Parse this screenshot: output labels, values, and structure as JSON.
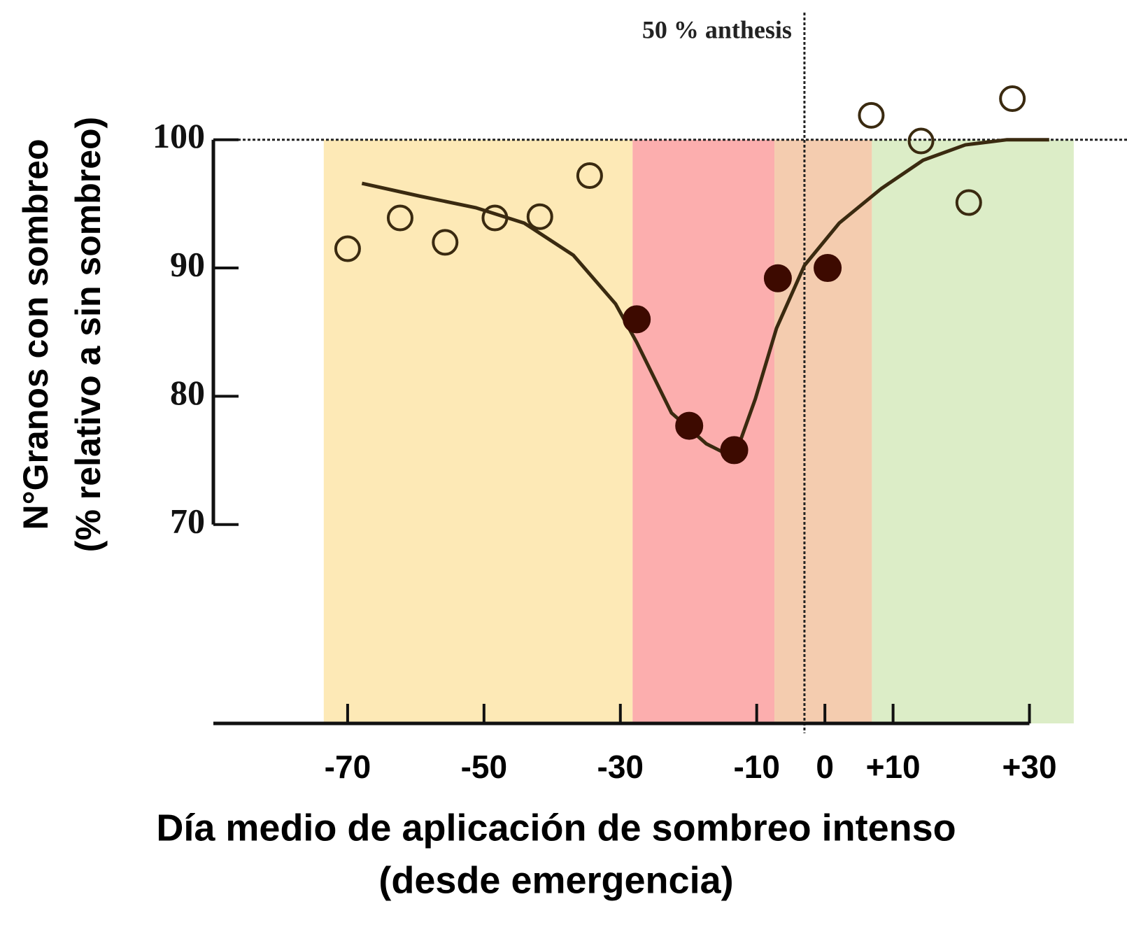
{
  "chart_data": {
    "type": "scatter",
    "annotation": "50 % anthesis",
    "anthesis_x": -3,
    "y_title": [
      "N°Granos con sombreo",
      "(% relativo a sin sombreo)"
    ],
    "x_title": [
      "Día medio de aplicación de sombreo intenso",
      "(desde emergencia)"
    ],
    "xlim": [
      -90,
      40
    ],
    "ylim": [
      54.5,
      108
    ],
    "xticks": [
      -70,
      -50,
      -30,
      -10,
      0,
      {
        "value": 10,
        "label": "+10"
      },
      {
        "value": 30,
        "label": "+30"
      }
    ],
    "yticks": [
      70,
      80,
      90,
      100
    ],
    "reference_y": 100,
    "bands": [
      {
        "from": -73.5,
        "to": -28.2,
        "color": "#fde9b6"
      },
      {
        "from": -28.2,
        "to": -7.4,
        "color": "#fcaeae"
      },
      {
        "from": -7.4,
        "to": 6.9,
        "color": "#f4ccaf"
      },
      {
        "from": 6.9,
        "to": 36.5,
        "color": "#dcedc7"
      }
    ],
    "series": [
      {
        "marker": "open",
        "color": "#3a2a10",
        "x": [
          -70,
          -62.3,
          -55.7,
          -48.4,
          -41.8,
          -34.5,
          6.8,
          14.1,
          21.1,
          27.5
        ],
        "values": [
          91.5,
          93.9,
          92.0,
          93.9,
          94.0,
          97.2,
          101.9,
          99.9,
          95.1,
          103.2
        ]
      },
      {
        "marker": "filled",
        "color": "#3d0a00",
        "x": [
          -27.6,
          -19.9,
          -13.3,
          -6.9,
          0.4
        ],
        "values": [
          86.0,
          77.7,
          75.8,
          89.2,
          90.0
        ]
      }
    ],
    "fit": {
      "color": "#3a2a10",
      "x": [
        -67.9,
        -59.4,
        -51.2,
        -44.1,
        -36.9,
        -30.7,
        -27.6,
        -22.5,
        -17.4,
        -13.3,
        -10.2,
        -7.1,
        -3.0,
        2.1,
        8.3,
        14.4,
        20.6,
        26.7,
        32.9
      ],
      "values": [
        96.6,
        95.6,
        94.7,
        93.5,
        91.0,
        87.2,
        84.2,
        78.7,
        76.3,
        75.2,
        79.8,
        85.3,
        90.2,
        93.5,
        96.2,
        98.4,
        99.6,
        100,
        100
      ]
    }
  }
}
